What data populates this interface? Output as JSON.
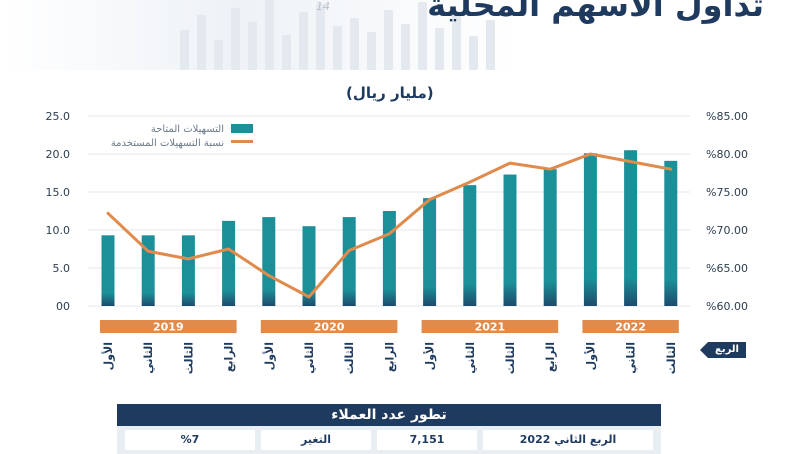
{
  "header": {
    "title": "تداول الأسهم المحلية",
    "date_stamp": "14"
  },
  "unit_label": "(مليار ريال)",
  "axis_tag": "الربع",
  "colors": {
    "bar": "#1b9098",
    "bar_dark": "#1d4a6b",
    "line": "#e08a4c",
    "year_band": "#e08a4c",
    "navy": "#1f3a5f"
  },
  "chart_data": {
    "type": "bar",
    "left_axis": {
      "min": 0,
      "max": 25,
      "ticks": [
        "00",
        "5.0",
        "10.0",
        "15.0",
        "20.0",
        "25.0"
      ]
    },
    "right_axis": {
      "min": 60,
      "max": 85,
      "ticks": [
        "%60.00",
        "%65.00",
        "%70.00",
        "%75.00",
        "%80.00",
        "%85.00"
      ]
    },
    "categories": [
      "الأول",
      "الثاني",
      "الثالث",
      "الرابع",
      "الأول",
      "الثاني",
      "الثالث",
      "الرابع",
      "الأول",
      "الثاني",
      "الثالث",
      "الرابع",
      "الأول",
      "الثاني",
      "الثالث"
    ],
    "years": [
      {
        "label": "2019",
        "start": 0,
        "end": 3
      },
      {
        "label": "2020",
        "start": 4,
        "end": 7
      },
      {
        "label": "2021",
        "start": 8,
        "end": 11
      },
      {
        "label": "2022",
        "start": 12,
        "end": 14
      }
    ],
    "series": [
      {
        "name": "التسهيلات المتاحة",
        "axis": "left",
        "type": "bar",
        "values": [
          9.3,
          9.3,
          9.3,
          11.2,
          11.7,
          10.5,
          11.7,
          12.5,
          14.2,
          15.9,
          17.3,
          18.0,
          20.1,
          20.5,
          19.1
        ]
      },
      {
        "name": "نسبة التسهيلات المستخدمة",
        "axis": "right",
        "type": "line",
        "values": [
          72.2,
          67.2,
          66.2,
          67.5,
          64.0,
          61.2,
          67.3,
          69.5,
          74.0,
          76.3,
          78.8,
          78.0,
          80.0,
          79.0,
          78.0
        ]
      }
    ]
  },
  "customers_panel": {
    "title": "تطور عدد العملاء",
    "quarter_label": "الربع الثاني 2022",
    "value": "7,151",
    "change_label": "التغير",
    "change_value": "%7"
  }
}
